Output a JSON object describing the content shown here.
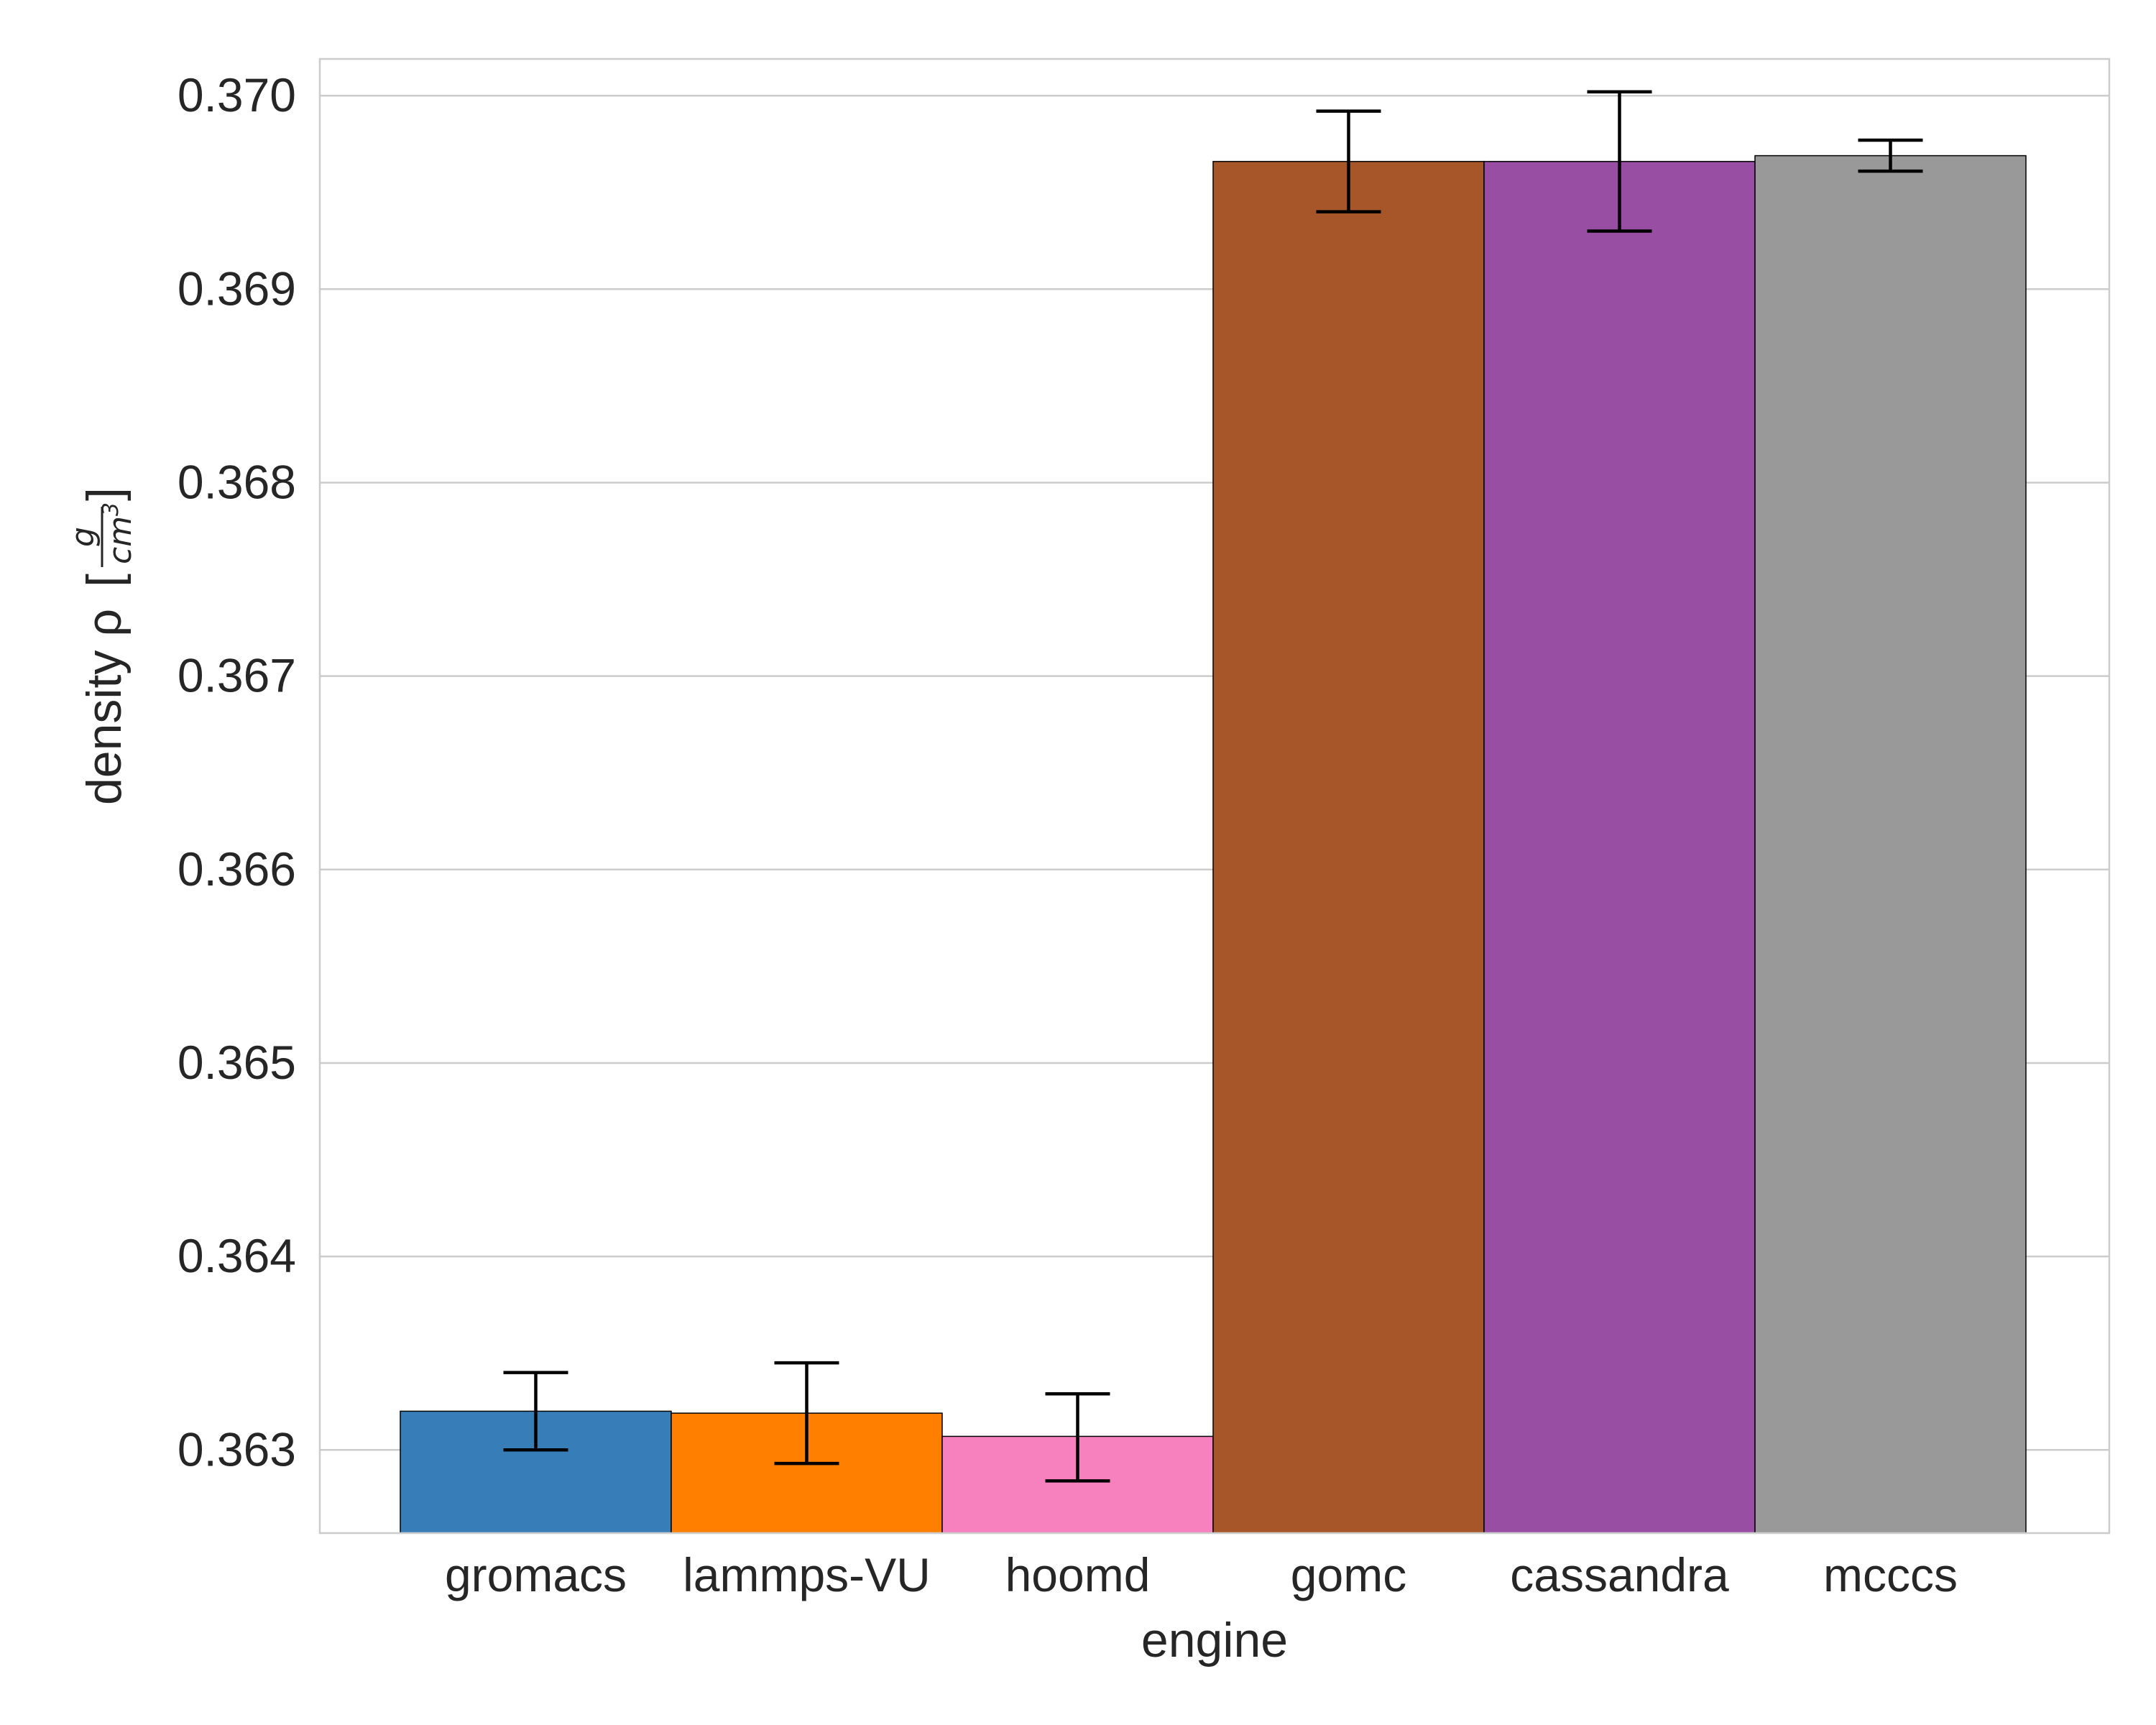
{
  "chart_data": {
    "type": "bar",
    "categories": [
      "gromacs",
      "lammps-VU",
      "hoomd",
      "gomc",
      "cassandra",
      "mcccs"
    ],
    "values": [
      0.3632,
      0.36319,
      0.36307,
      0.36966,
      0.36966,
      0.36969
    ],
    "errors": [
      [
        0.363,
        0.3634
      ],
      [
        0.36293,
        0.36345
      ],
      [
        0.36284,
        0.36329
      ],
      [
        0.3694,
        0.36992
      ],
      [
        0.3693,
        0.37002
      ],
      [
        0.36961,
        0.36977
      ]
    ],
    "colors": [
      "#377eb8",
      "#ff7f00",
      "#f781bf",
      "#a65628",
      "#984ea3",
      "#999999"
    ],
    "xlabel": "engine",
    "ylabel": {
      "prefix": "density ρ",
      "unit_numerator": "g",
      "unit_denominator": "cm",
      "unit_exponent": "3"
    },
    "ylim": [
      0.36257,
      0.37019
    ],
    "yticks": [
      0.363,
      0.364,
      0.365,
      0.366,
      0.367,
      0.368,
      0.369,
      0.37
    ],
    "ytick_labels": [
      "0.363",
      "0.364",
      "0.365",
      "0.366",
      "0.367",
      "0.368",
      "0.369",
      "0.370"
    ],
    "grid": true,
    "style": {
      "grid_color": "#cccccc",
      "frame_color": "#cccccc",
      "bar_edge": "#000000",
      "errorbar_color": "#000000"
    }
  }
}
